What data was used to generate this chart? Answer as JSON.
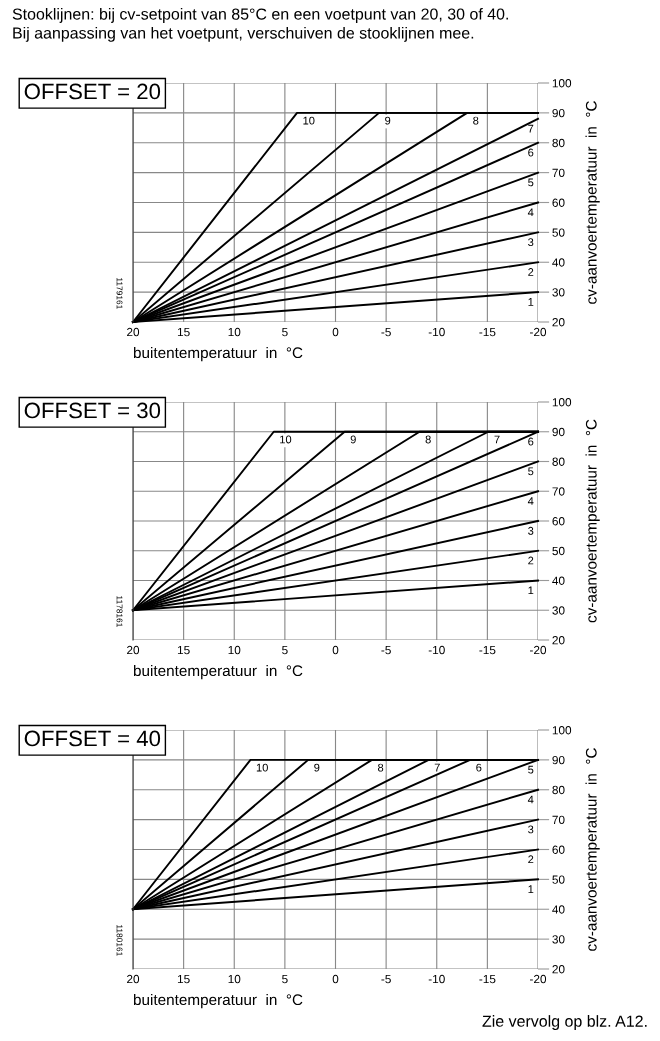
{
  "chart_data": [
    {
      "type": "line",
      "title": "OFFSET = 20",
      "xlabel": "buitentemperatuur  in  °C",
      "ylabel": "cv-aanvoertemperatuur  in  °C",
      "annotations": [
        "1179161",
        "Stooklijnen: bij cv-setpoint van 85°C en een voetpunt van 20, 30 of 40.\nBij aanpassing van het voetpunt, verschuiven de stooklijnen mee."
      ],
      "xlim": [
        20,
        -20
      ],
      "xticks": [
        20,
        15,
        10,
        5,
        0,
        -5,
        -10,
        -15,
        -20
      ],
      "ylim": [
        20,
        100
      ],
      "yticks": [
        20,
        30,
        40,
        50,
        60,
        70,
        80,
        90,
        100
      ],
      "grid": true,
      "legend": false,
      "marker": "none",
      "line_style": "solid",
      "series": [
        {
          "name": "1",
          "color": "#000000",
          "x": [
            20,
            -20
          ],
          "values": [
            20,
            30
          ]
        },
        {
          "name": "2",
          "color": "#000000",
          "x": [
            20,
            -20
          ],
          "values": [
            20,
            40
          ]
        },
        {
          "name": "3",
          "color": "#000000",
          "x": [
            20,
            -20
          ],
          "values": [
            20,
            50
          ]
        },
        {
          "name": "4",
          "color": "#000000",
          "x": [
            20,
            -20
          ],
          "values": [
            20,
            60
          ]
        },
        {
          "name": "5",
          "color": "#000000",
          "x": [
            20,
            -20
          ],
          "values": [
            20,
            70
          ]
        },
        {
          "name": "6",
          "color": "#000000",
          "x": [
            20,
            -20
          ],
          "values": [
            20,
            80
          ]
        },
        {
          "name": "7",
          "color": "#000000",
          "x": [
            20,
            -20
          ],
          "values": [
            20,
            88
          ]
        },
        {
          "name": "8",
          "color": "#000000",
          "x": [
            20,
            -13,
            -20
          ],
          "values": [
            20,
            90,
            90
          ]
        },
        {
          "name": "9",
          "color": "#000000",
          "x": [
            20,
            -4.3,
            -20
          ],
          "values": [
            20,
            90,
            90
          ]
        },
        {
          "name": "10",
          "color": "#000000",
          "x": [
            20,
            3.8,
            -20
          ],
          "values": [
            20,
            90,
            90
          ]
        }
      ]
    },
    {
      "type": "line",
      "title": "OFFSET = 30",
      "xlabel": "buitentemperatuur  in  °C",
      "ylabel": "cv-aanvoertemperatuur  in  °C",
      "annotations": [
        "1178161"
      ],
      "xlim": [
        20,
        -20
      ],
      "xticks": [
        20,
        15,
        10,
        5,
        0,
        -5,
        -10,
        -15,
        -20
      ],
      "ylim": [
        20,
        100
      ],
      "yticks": [
        20,
        30,
        40,
        50,
        60,
        70,
        80,
        90,
        100
      ],
      "grid": true,
      "legend": false,
      "marker": "none",
      "line_style": "solid",
      "series": [
        {
          "name": "1",
          "color": "#000000",
          "x": [
            20,
            -20
          ],
          "values": [
            30,
            40
          ]
        },
        {
          "name": "2",
          "color": "#000000",
          "x": [
            20,
            -20
          ],
          "values": [
            30,
            50
          ]
        },
        {
          "name": "3",
          "color": "#000000",
          "x": [
            20,
            -20
          ],
          "values": [
            30,
            60
          ]
        },
        {
          "name": "4",
          "color": "#000000",
          "x": [
            20,
            -20
          ],
          "values": [
            30,
            70
          ]
        },
        {
          "name": "5",
          "color": "#000000",
          "x": [
            20,
            -20
          ],
          "values": [
            30,
            80
          ]
        },
        {
          "name": "6",
          "color": "#000000",
          "x": [
            20,
            -20
          ],
          "values": [
            30,
            90
          ]
        },
        {
          "name": "7",
          "color": "#000000",
          "x": [
            20,
            -15.1,
            -20
          ],
          "values": [
            30,
            90,
            90
          ]
        },
        {
          "name": "8",
          "color": "#000000",
          "x": [
            20,
            -8.3,
            -20
          ],
          "values": [
            30,
            90,
            90
          ]
        },
        {
          "name": "9",
          "color": "#000000",
          "x": [
            20,
            -0.9,
            -20
          ],
          "values": [
            30,
            90,
            90
          ]
        },
        {
          "name": "10",
          "color": "#000000",
          "x": [
            20,
            6.1,
            -20
          ],
          "values": [
            30,
            90,
            90
          ]
        }
      ]
    },
    {
      "type": "line",
      "title": "OFFSET = 40",
      "xlabel": "buitentemperatuur  in  °C",
      "ylabel": "cv-aanvoertemperatuur  in  °C",
      "annotations": [
        "1180161",
        "Zie vervolg op blz. A12."
      ],
      "xlim": [
        20,
        -20
      ],
      "xticks": [
        20,
        15,
        10,
        5,
        0,
        -5,
        -10,
        -15,
        -20
      ],
      "ylim": [
        20,
        100
      ],
      "yticks": [
        20,
        30,
        40,
        50,
        60,
        70,
        80,
        90,
        100
      ],
      "grid": true,
      "legend": false,
      "marker": "none",
      "line_style": "solid",
      "series": [
        {
          "name": "1",
          "color": "#000000",
          "x": [
            20,
            -20
          ],
          "values": [
            40,
            50
          ]
        },
        {
          "name": "2",
          "color": "#000000",
          "x": [
            20,
            -20
          ],
          "values": [
            40,
            60
          ]
        },
        {
          "name": "3",
          "color": "#000000",
          "x": [
            20,
            -20
          ],
          "values": [
            40,
            70
          ]
        },
        {
          "name": "4",
          "color": "#000000",
          "x": [
            20,
            -20
          ],
          "values": [
            40,
            80
          ]
        },
        {
          "name": "5",
          "color": "#000000",
          "x": [
            20,
            -20
          ],
          "values": [
            40,
            90
          ]
        },
        {
          "name": "6",
          "color": "#000000",
          "x": [
            20,
            -13.3,
            -20
          ],
          "values": [
            40,
            90,
            90
          ]
        },
        {
          "name": "7",
          "color": "#000000",
          "x": [
            20,
            -9.2,
            -20
          ],
          "values": [
            40,
            90,
            90
          ]
        },
        {
          "name": "8",
          "color": "#000000",
          "x": [
            20,
            -3.6,
            -20
          ],
          "values": [
            40,
            90,
            90
          ]
        },
        {
          "name": "9",
          "color": "#000000",
          "x": [
            20,
            2.7,
            -20
          ],
          "values": [
            40,
            90,
            90
          ]
        },
        {
          "name": "10",
          "color": "#000000",
          "x": [
            20,
            8.4,
            -20
          ],
          "values": [
            40,
            90,
            90
          ]
        }
      ]
    }
  ]
}
